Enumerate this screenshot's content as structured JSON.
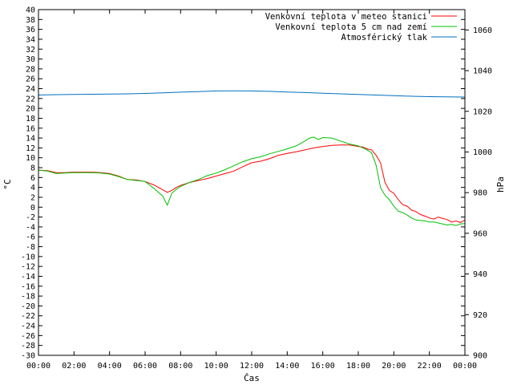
{
  "chart_data": {
    "type": "line",
    "xlabel": "Čas",
    "ylabel_left": "°C",
    "ylabel_right": "hPa",
    "x_ticks": [
      "00:00",
      "02:00",
      "04:00",
      "06:00",
      "08:00",
      "10:00",
      "12:00",
      "14:00",
      "16:00",
      "18:00",
      "20:00",
      "22:00",
      "00:00"
    ],
    "y_left_range": [
      -30,
      40
    ],
    "y_left_ticks": [
      40,
      38,
      36,
      34,
      32,
      30,
      28,
      26,
      24,
      22,
      20,
      18,
      16,
      14,
      12,
      10,
      8,
      6,
      4,
      2,
      0,
      -2,
      -4,
      -6,
      -8,
      -10,
      -12,
      -14,
      -16,
      -18,
      -20,
      -22,
      -24,
      -26,
      -28,
      -30
    ],
    "y_right_range": [
      900,
      1070
    ],
    "y_right_ticks": [
      1060,
      1040,
      1020,
      1000,
      980,
      960,
      940,
      920,
      900
    ],
    "legend_position": "top-right",
    "grid": false,
    "series": [
      {
        "name": "Venkovní teplota v meteo stanici",
        "color": "#ff0000",
        "axis": "left",
        "x_hours": [
          0,
          0.5,
          1,
          1.5,
          2,
          2.5,
          3,
          3.5,
          4,
          4.5,
          5,
          5.5,
          6,
          6.5,
          7,
          7.25,
          7.5,
          7.75,
          8,
          8.5,
          9,
          9.5,
          10,
          10.5,
          11,
          11.5,
          12,
          12.5,
          13,
          13.5,
          14,
          14.5,
          15,
          15.5,
          16,
          16.5,
          17,
          17.5,
          18,
          18.25,
          18.5,
          18.75,
          19,
          19.25,
          19.5,
          19.75,
          20,
          20.25,
          20.5,
          20.75,
          21,
          21.25,
          21.5,
          21.75,
          22,
          22.25,
          22.5,
          22.75,
          23,
          23.25,
          23.5,
          23.75,
          24
        ],
        "values": [
          7.5,
          7.4,
          7,
          7,
          7.1,
          7.1,
          7.1,
          7,
          6.8,
          6.3,
          5.6,
          5.5,
          5.2,
          4.5,
          3.5,
          3,
          3.4,
          4,
          4.4,
          5,
          5.4,
          5.8,
          6.3,
          6.8,
          7.3,
          8.2,
          9,
          9.3,
          9.8,
          10.5,
          10.9,
          11.2,
          11.6,
          12,
          12.3,
          12.5,
          12.6,
          12.6,
          12.3,
          12.2,
          11.8,
          11.6,
          10.5,
          9,
          5,
          3.4,
          2.8,
          1.5,
          0.5,
          0.2,
          -0.6,
          -0.9,
          -1.5,
          -1.8,
          -2.2,
          -2.4,
          -2,
          -2.3,
          -2.5,
          -3,
          -2.8,
          -3.1,
          -2.6
        ]
      },
      {
        "name": "Venkovní teplota 5 cm nad zemí",
        "color": "#00c000",
        "axis": "left",
        "x_hours": [
          0,
          0.5,
          1,
          1.5,
          2,
          2.5,
          3,
          3.5,
          4,
          4.5,
          5,
          5.5,
          6,
          6.5,
          7,
          7.25,
          7.5,
          7.75,
          8,
          8.5,
          9,
          9.5,
          10,
          10.5,
          11,
          11.5,
          12,
          12.5,
          13,
          13.5,
          14,
          14.5,
          15,
          15.25,
          15.5,
          15.75,
          16,
          16.5,
          17,
          17.5,
          18,
          18.5,
          18.75,
          19,
          19.25,
          19.5,
          19.75,
          20,
          20.25,
          20.5,
          20.75,
          21,
          21.25,
          21.5,
          21.75,
          22,
          22.25,
          22.5,
          22.75,
          23,
          23.25,
          23.5,
          23.75,
          24
        ],
        "values": [
          7.5,
          7.3,
          6.8,
          6.9,
          7,
          7,
          7,
          6.9,
          6.7,
          6.2,
          5.6,
          5.4,
          5.2,
          3.8,
          2.2,
          0.4,
          2.8,
          3.6,
          4.2,
          5,
          5.6,
          6.4,
          6.9,
          7.6,
          8.4,
          9.2,
          9.8,
          10.2,
          10.8,
          11.3,
          11.8,
          12.4,
          13.4,
          14,
          14.2,
          13.7,
          14.1,
          14,
          13.4,
          12.8,
          12.4,
          11.6,
          11,
          8.5,
          4,
          2.4,
          1.5,
          0.2,
          -0.8,
          -1.1,
          -1.6,
          -2.2,
          -2.6,
          -2.7,
          -2.8,
          -3,
          -3,
          -3.2,
          -3.4,
          -3.6,
          -3.5,
          -3.7,
          -3.4,
          -3.3
        ]
      },
      {
        "name": "Atmosférický tlak",
        "color": "#0070c0",
        "axis": "right",
        "x_hours": [
          0,
          1,
          2,
          3,
          4,
          5,
          6,
          7,
          8,
          9,
          10,
          11,
          12,
          13,
          14,
          15,
          16,
          17,
          18,
          19,
          20,
          21,
          22,
          23,
          24
        ],
        "values": [
          1028,
          1028.2,
          1028.3,
          1028.4,
          1028.5,
          1028.6,
          1028.8,
          1029.1,
          1029.4,
          1029.7,
          1030,
          1030.1,
          1030,
          1029.8,
          1029.5,
          1029.2,
          1028.9,
          1028.6,
          1028.3,
          1028,
          1027.7,
          1027.4,
          1027.2,
          1027.1,
          1027
        ]
      }
    ]
  }
}
